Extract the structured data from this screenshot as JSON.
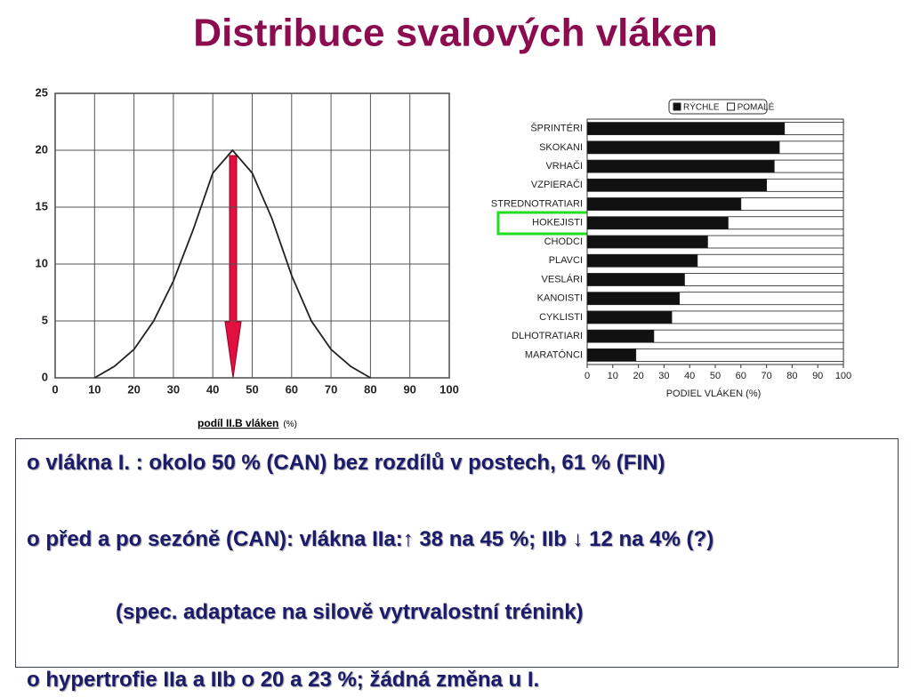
{
  "title": "Distribuce svalových vláken",
  "chart_data": [
    {
      "type": "line",
      "x_label": "podíl II.B vláken",
      "x_unit": "(%)",
      "x": [
        10,
        15,
        20,
        25,
        30,
        35,
        40,
        45,
        50,
        55,
        60,
        65,
        70,
        75,
        80
      ],
      "series": [
        {
          "color": "#222222",
          "values": [
            0,
            1,
            2.5,
            5,
            8.5,
            13,
            18,
            20,
            18,
            14,
            9,
            5,
            2.5,
            1,
            0
          ]
        }
      ],
      "xlim": [
        0,
        100
      ],
      "xticks": [
        0,
        10,
        20,
        30,
        40,
        50,
        60,
        70,
        80,
        90,
        100
      ],
      "ylim": [
        0,
        25
      ],
      "yticks": [
        0,
        5,
        10,
        15,
        20,
        25
      ],
      "grid": true
    },
    {
      "type": "bar",
      "orientation": "horizontal",
      "stacked": true,
      "x_label": "PODIEL VLÁKEN (%)",
      "categories": [
        "ŠPRINTÉRI",
        "SKOKANI",
        "VRHAČI",
        "VZPIERAČI",
        "STREDNOTRATIARI",
        "HOKEJISTI",
        "CHODCI",
        "PLAVCI",
        "VESLÁRI",
        "KANOISTI",
        "CYKLISTI",
        "DLHOTRATIARI",
        "MARATÓNCI"
      ],
      "series": [
        {
          "name": "RÝCHLE",
          "color": "#111111",
          "values": [
            77,
            75,
            73,
            70,
            60,
            55,
            47,
            43,
            38,
            36,
            33,
            26,
            19
          ]
        },
        {
          "name": "POMALÉ",
          "color": "#ffffff",
          "values": [
            23,
            25,
            27,
            30,
            40,
            45,
            53,
            57,
            62,
            64,
            67,
            74,
            81
          ]
        }
      ],
      "xlim": [
        0,
        100
      ],
      "xticks": [
        0,
        10,
        20,
        30,
        40,
        50,
        60,
        70,
        80,
        90,
        100
      ],
      "legend": "top"
    }
  ],
  "text_box": {
    "items": [
      "o vlákna I. : okolo 50 % (CAN) bez rozdílů v postech, 61 % (FIN)",
      "o před a po sezóně (CAN): vlákna IIa:↑ 38 na 45 %; IIb ↓ 12 na 4% (?)",
      "(spec. adaptace na silově vytrvalostní trénink)",
      "o hypertrofie IIa a IIb o 20 a 23 %; žádná změna u I."
    ]
  }
}
